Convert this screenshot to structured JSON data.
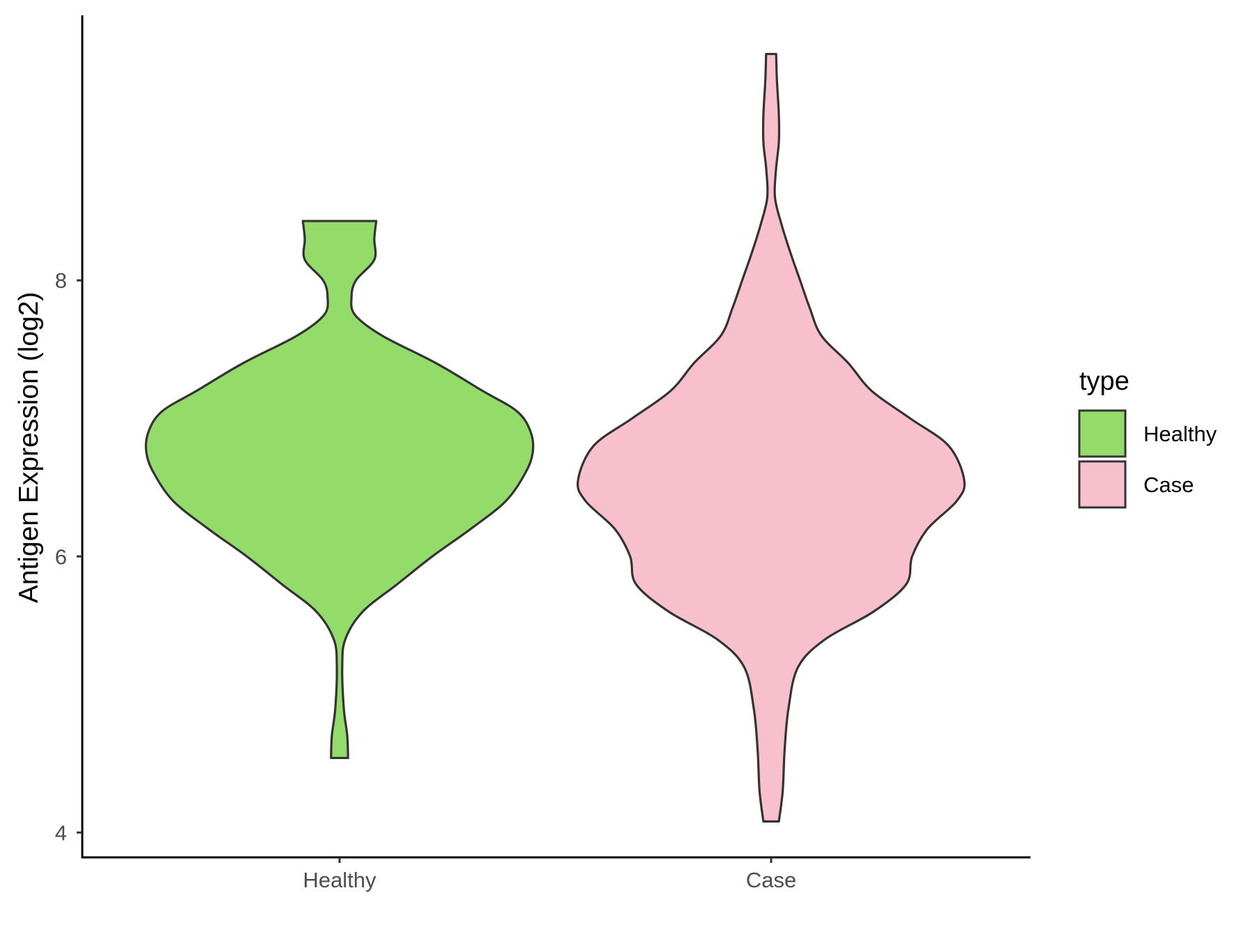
{
  "chart_data": {
    "type": "violin",
    "ylabel": "Antigen Expression (log2)",
    "xlabel": "",
    "categories": [
      "Healthy",
      "Case"
    ],
    "ylim": [
      3.82,
      9.92
    ],
    "yticks": [
      4,
      6,
      8
    ],
    "grid": false,
    "legend": {
      "title": "type",
      "position": "right",
      "entries": [
        "Healthy",
        "Case"
      ]
    },
    "series": [
      {
        "name": "Healthy",
        "color": "#93DC6A",
        "min": 4.54,
        "max": 8.43,
        "density_profile": [
          [
            4.54,
            0.044
          ],
          [
            4.7,
            0.04
          ],
          [
            4.9,
            0.022
          ],
          [
            5.2,
            0.014
          ],
          [
            5.4,
            0.03
          ],
          [
            5.6,
            0.12
          ],
          [
            5.8,
            0.3
          ],
          [
            6.0,
            0.48
          ],
          [
            6.2,
            0.68
          ],
          [
            6.4,
            0.86
          ],
          [
            6.6,
            0.96
          ],
          [
            6.75,
            1.0
          ],
          [
            6.9,
            0.99
          ],
          [
            7.05,
            0.92
          ],
          [
            7.2,
            0.74
          ],
          [
            7.4,
            0.5
          ],
          [
            7.6,
            0.22
          ],
          [
            7.75,
            0.08
          ],
          [
            7.88,
            0.062
          ],
          [
            8.0,
            0.085
          ],
          [
            8.15,
            0.18
          ],
          [
            8.3,
            0.18
          ],
          [
            8.43,
            0.19
          ]
        ]
      },
      {
        "name": "Case",
        "color": "#F8C0CC",
        "min": 4.08,
        "max": 9.64,
        "density_profile": [
          [
            4.08,
            0.04
          ],
          [
            4.3,
            0.06
          ],
          [
            4.6,
            0.07
          ],
          [
            4.9,
            0.09
          ],
          [
            5.2,
            0.14
          ],
          [
            5.4,
            0.28
          ],
          [
            5.6,
            0.53
          ],
          [
            5.8,
            0.7
          ],
          [
            6.0,
            0.73
          ],
          [
            6.2,
            0.81
          ],
          [
            6.4,
            0.96
          ],
          [
            6.55,
            1.0
          ],
          [
            6.8,
            0.92
          ],
          [
            7.0,
            0.72
          ],
          [
            7.2,
            0.52
          ],
          [
            7.4,
            0.4
          ],
          [
            7.6,
            0.26
          ],
          [
            7.8,
            0.2
          ],
          [
            8.0,
            0.15
          ],
          [
            8.2,
            0.1
          ],
          [
            8.4,
            0.055
          ],
          [
            8.6,
            0.02
          ],
          [
            8.8,
            0.025
          ],
          [
            9.0,
            0.04
          ],
          [
            9.2,
            0.04
          ],
          [
            9.45,
            0.03
          ],
          [
            9.64,
            0.026
          ]
        ]
      }
    ]
  }
}
